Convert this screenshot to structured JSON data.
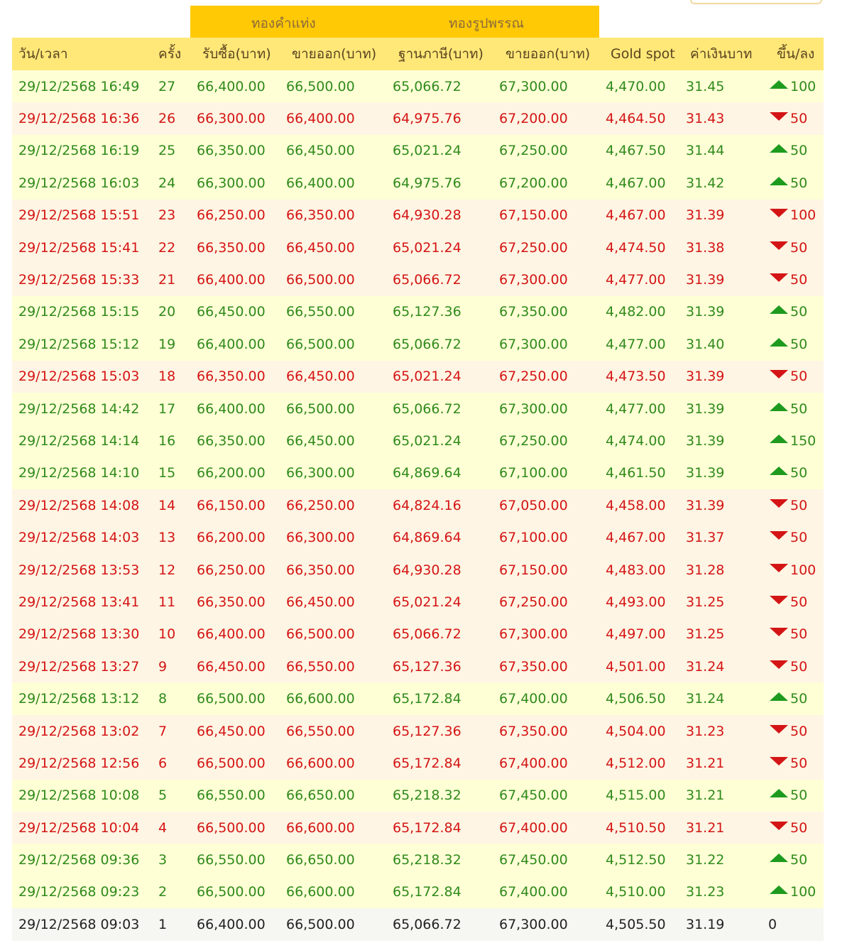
{
  "groups": {
    "bar_gold": "ทองคำแท่ง",
    "ornament_gold": "ทองรูปพรรณ"
  },
  "headers": [
    "วัน/เวลา",
    "ครั้ง",
    "รับซื้อ(บาท)",
    "ขายออก(บาท)",
    "ฐานภาษี(บาท)",
    "ขายออก(บาท)",
    "Gold spot",
    "ค่าเงินบาท",
    "ขึ้น/ลง"
  ],
  "colors": {
    "up_text": "#2f8a1b",
    "down_text": "#d41515",
    "flat_text": "#222222",
    "up_row": "#ffffd6",
    "down_row": "#fef5e4",
    "header_row": "#ffe878",
    "group_bar": "#ffc906"
  },
  "rows": [
    {
      "datetime": "29/12/2568 16:49",
      "round": "27",
      "bar_buy": "66,400.00",
      "bar_sell": "66,500.00",
      "tax_base": "65,066.72",
      "orn_sell": "67,300.00",
      "spot": "4,470.00",
      "thb": "31.45",
      "dir": "up",
      "change": "100"
    },
    {
      "datetime": "29/12/2568 16:36",
      "round": "26",
      "bar_buy": "66,300.00",
      "bar_sell": "66,400.00",
      "tax_base": "64,975.76",
      "orn_sell": "67,200.00",
      "spot": "4,464.50",
      "thb": "31.43",
      "dir": "down",
      "change": "50"
    },
    {
      "datetime": "29/12/2568 16:19",
      "round": "25",
      "bar_buy": "66,350.00",
      "bar_sell": "66,450.00",
      "tax_base": "65,021.24",
      "orn_sell": "67,250.00",
      "spot": "4,467.50",
      "thb": "31.44",
      "dir": "up",
      "change": "50"
    },
    {
      "datetime": "29/12/2568 16:03",
      "round": "24",
      "bar_buy": "66,300.00",
      "bar_sell": "66,400.00",
      "tax_base": "64,975.76",
      "orn_sell": "67,200.00",
      "spot": "4,467.00",
      "thb": "31.42",
      "dir": "up",
      "change": "50"
    },
    {
      "datetime": "29/12/2568 15:51",
      "round": "23",
      "bar_buy": "66,250.00",
      "bar_sell": "66,350.00",
      "tax_base": "64,930.28",
      "orn_sell": "67,150.00",
      "spot": "4,467.00",
      "thb": "31.39",
      "dir": "down",
      "change": "100"
    },
    {
      "datetime": "29/12/2568 15:41",
      "round": "22",
      "bar_buy": "66,350.00",
      "bar_sell": "66,450.00",
      "tax_base": "65,021.24",
      "orn_sell": "67,250.00",
      "spot": "4,474.50",
      "thb": "31.38",
      "dir": "down",
      "change": "50"
    },
    {
      "datetime": "29/12/2568 15:33",
      "round": "21",
      "bar_buy": "66,400.00",
      "bar_sell": "66,500.00",
      "tax_base": "65,066.72",
      "orn_sell": "67,300.00",
      "spot": "4,477.00",
      "thb": "31.39",
      "dir": "down",
      "change": "50"
    },
    {
      "datetime": "29/12/2568 15:15",
      "round": "20",
      "bar_buy": "66,450.00",
      "bar_sell": "66,550.00",
      "tax_base": "65,127.36",
      "orn_sell": "67,350.00",
      "spot": "4,482.00",
      "thb": "31.39",
      "dir": "up",
      "change": "50"
    },
    {
      "datetime": "29/12/2568 15:12",
      "round": "19",
      "bar_buy": "66,400.00",
      "bar_sell": "66,500.00",
      "tax_base": "65,066.72",
      "orn_sell": "67,300.00",
      "spot": "4,477.00",
      "thb": "31.40",
      "dir": "up",
      "change": "50"
    },
    {
      "datetime": "29/12/2568 15:03",
      "round": "18",
      "bar_buy": "66,350.00",
      "bar_sell": "66,450.00",
      "tax_base": "65,021.24",
      "orn_sell": "67,250.00",
      "spot": "4,473.50",
      "thb": "31.39",
      "dir": "down",
      "change": "50"
    },
    {
      "datetime": "29/12/2568 14:42",
      "round": "17",
      "bar_buy": "66,400.00",
      "bar_sell": "66,500.00",
      "tax_base": "65,066.72",
      "orn_sell": "67,300.00",
      "spot": "4,477.00",
      "thb": "31.39",
      "dir": "up",
      "change": "50"
    },
    {
      "datetime": "29/12/2568 14:14",
      "round": "16",
      "bar_buy": "66,350.00",
      "bar_sell": "66,450.00",
      "tax_base": "65,021.24",
      "orn_sell": "67,250.00",
      "spot": "4,474.00",
      "thb": "31.39",
      "dir": "up",
      "change": "150"
    },
    {
      "datetime": "29/12/2568 14:10",
      "round": "15",
      "bar_buy": "66,200.00",
      "bar_sell": "66,300.00",
      "tax_base": "64,869.64",
      "orn_sell": "67,100.00",
      "spot": "4,461.50",
      "thb": "31.39",
      "dir": "up",
      "change": "50"
    },
    {
      "datetime": "29/12/2568 14:08",
      "round": "14",
      "bar_buy": "66,150.00",
      "bar_sell": "66,250.00",
      "tax_base": "64,824.16",
      "orn_sell": "67,050.00",
      "spot": "4,458.00",
      "thb": "31.39",
      "dir": "down",
      "change": "50"
    },
    {
      "datetime": "29/12/2568 14:03",
      "round": "13",
      "bar_buy": "66,200.00",
      "bar_sell": "66,300.00",
      "tax_base": "64,869.64",
      "orn_sell": "67,100.00",
      "spot": "4,467.00",
      "thb": "31.37",
      "dir": "down",
      "change": "50"
    },
    {
      "datetime": "29/12/2568 13:53",
      "round": "12",
      "bar_buy": "66,250.00",
      "bar_sell": "66,350.00",
      "tax_base": "64,930.28",
      "orn_sell": "67,150.00",
      "spot": "4,483.00",
      "thb": "31.28",
      "dir": "down",
      "change": "100"
    },
    {
      "datetime": "29/12/2568 13:41",
      "round": "11",
      "bar_buy": "66,350.00",
      "bar_sell": "66,450.00",
      "tax_base": "65,021.24",
      "orn_sell": "67,250.00",
      "spot": "4,493.00",
      "thb": "31.25",
      "dir": "down",
      "change": "50"
    },
    {
      "datetime": "29/12/2568 13:30",
      "round": "10",
      "bar_buy": "66,400.00",
      "bar_sell": "66,500.00",
      "tax_base": "65,066.72",
      "orn_sell": "67,300.00",
      "spot": "4,497.00",
      "thb": "31.25",
      "dir": "down",
      "change": "50"
    },
    {
      "datetime": "29/12/2568 13:27",
      "round": "9",
      "bar_buy": "66,450.00",
      "bar_sell": "66,550.00",
      "tax_base": "65,127.36",
      "orn_sell": "67,350.00",
      "spot": "4,501.00",
      "thb": "31.24",
      "dir": "down",
      "change": "50"
    },
    {
      "datetime": "29/12/2568 13:12",
      "round": "8",
      "bar_buy": "66,500.00",
      "bar_sell": "66,600.00",
      "tax_base": "65,172.84",
      "orn_sell": "67,400.00",
      "spot": "4,506.50",
      "thb": "31.24",
      "dir": "up",
      "change": "50"
    },
    {
      "datetime": "29/12/2568 13:02",
      "round": "7",
      "bar_buy": "66,450.00",
      "bar_sell": "66,550.00",
      "tax_base": "65,127.36",
      "orn_sell": "67,350.00",
      "spot": "4,504.00",
      "thb": "31.23",
      "dir": "down",
      "change": "50"
    },
    {
      "datetime": "29/12/2568 12:56",
      "round": "6",
      "bar_buy": "66,500.00",
      "bar_sell": "66,600.00",
      "tax_base": "65,172.84",
      "orn_sell": "67,400.00",
      "spot": "4,512.00",
      "thb": "31.21",
      "dir": "down",
      "change": "50"
    },
    {
      "datetime": "29/12/2568 10:08",
      "round": "5",
      "bar_buy": "66,550.00",
      "bar_sell": "66,650.00",
      "tax_base": "65,218.32",
      "orn_sell": "67,450.00",
      "spot": "4,515.00",
      "thb": "31.21",
      "dir": "up",
      "change": "50"
    },
    {
      "datetime": "29/12/2568 10:04",
      "round": "4",
      "bar_buy": "66,500.00",
      "bar_sell": "66,600.00",
      "tax_base": "65,172.84",
      "orn_sell": "67,400.00",
      "spot": "4,510.50",
      "thb": "31.21",
      "dir": "down",
      "change": "50"
    },
    {
      "datetime": "29/12/2568 09:36",
      "round": "3",
      "bar_buy": "66,550.00",
      "bar_sell": "66,650.00",
      "tax_base": "65,218.32",
      "orn_sell": "67,450.00",
      "spot": "4,512.50",
      "thb": "31.22",
      "dir": "up",
      "change": "50"
    },
    {
      "datetime": "29/12/2568 09:23",
      "round": "2",
      "bar_buy": "66,500.00",
      "bar_sell": "66,600.00",
      "tax_base": "65,172.84",
      "orn_sell": "67,400.00",
      "spot": "4,510.00",
      "thb": "31.23",
      "dir": "up",
      "change": "100"
    },
    {
      "datetime": "29/12/2568 09:03",
      "round": "1",
      "bar_buy": "66,400.00",
      "bar_sell": "66,500.00",
      "tax_base": "65,066.72",
      "orn_sell": "67,300.00",
      "spot": "4,505.50",
      "thb": "31.19",
      "dir": "flat",
      "change": "0"
    }
  ]
}
